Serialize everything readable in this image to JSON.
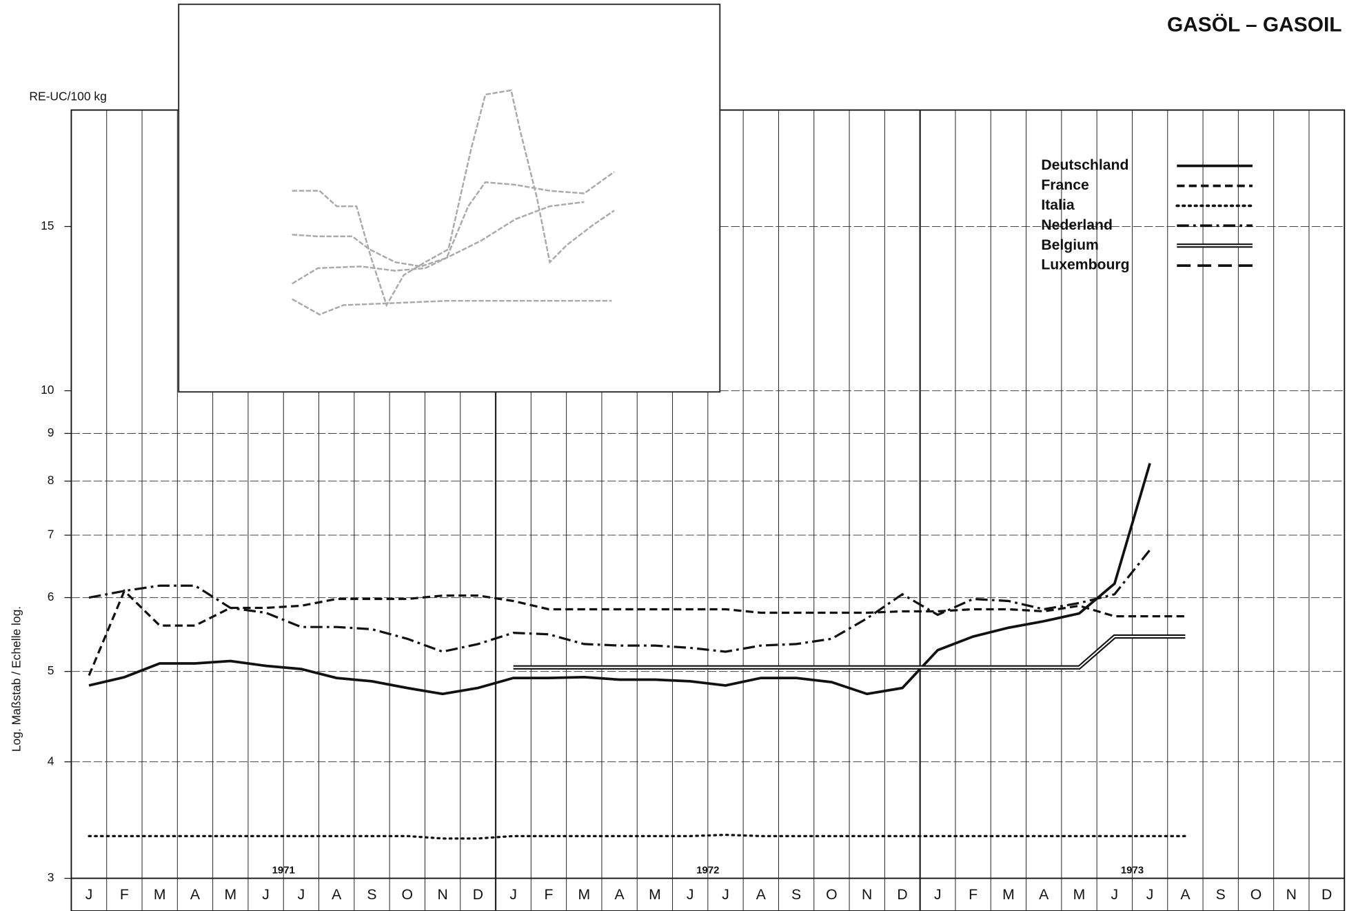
{
  "chart_data": {
    "type": "line",
    "title": "GASÖL – GASOIL",
    "unit_label": "RE-UC/100 kg",
    "y_axis_label": "Log. Maßstab / Echelle log.",
    "log_scale": true,
    "grid": true,
    "legend_position": "upper right",
    "years": [
      "1971",
      "1972",
      "1973"
    ],
    "categories": [
      "J",
      "F",
      "M",
      "A",
      "M",
      "J",
      "J",
      "A",
      "S",
      "O",
      "N",
      "D",
      "J",
      "F",
      "M",
      "A",
      "M",
      "J",
      "J",
      "A",
      "S",
      "O",
      "N",
      "D",
      "J",
      "F",
      "M",
      "A",
      "M",
      "J",
      "J",
      "A",
      "S",
      "O",
      "N",
      "D"
    ],
    "ylim": [
      3,
      20
    ],
    "yticks": [
      3,
      4,
      5,
      6,
      7,
      8,
      9,
      10,
      15
    ],
    "series": [
      {
        "name": "Deutschland",
        "color": "#111111",
        "style": "solid",
        "values": [
          4.83,
          4.93,
          5.1,
          5.1,
          5.13,
          5.07,
          5.03,
          4.92,
          4.88,
          4.8,
          4.73,
          4.8,
          4.92,
          4.92,
          4.93,
          4.9,
          4.9,
          4.88,
          4.83,
          4.92,
          4.92,
          4.87,
          4.73,
          4.8,
          5.27,
          5.45,
          5.57,
          5.66,
          5.77,
          6.21,
          8.36,
          null,
          null,
          null,
          null,
          null
        ]
      },
      {
        "name": "France",
        "color": "#111111",
        "style": "dashed",
        "values": [
          4.95,
          6.1,
          5.6,
          5.6,
          5.85,
          5.85,
          5.88,
          5.98,
          5.98,
          5.98,
          6.03,
          6.03,
          5.95,
          5.83,
          5.83,
          5.83,
          5.83,
          5.83,
          5.83,
          5.78,
          5.78,
          5.78,
          5.78,
          5.8,
          5.8,
          5.83,
          5.83,
          5.8,
          5.88,
          5.73,
          5.73,
          5.73,
          null,
          null,
          null,
          null
        ]
      },
      {
        "name": "Italia",
        "color": "#111111",
        "style": "dotted",
        "values": [
          3.33,
          3.33,
          3.33,
          3.33,
          3.33,
          3.33,
          3.33,
          3.33,
          3.33,
          3.33,
          3.31,
          3.31,
          3.33,
          3.33,
          3.33,
          3.33,
          3.33,
          3.33,
          3.34,
          3.33,
          3.33,
          3.33,
          3.33,
          3.33,
          3.33,
          3.33,
          3.33,
          3.33,
          3.33,
          3.33,
          3.33,
          3.33,
          null,
          null,
          null,
          null
        ]
      },
      {
        "name": "Nederland",
        "color": "#111111",
        "style": "dashdot",
        "values": [
          6.0,
          6.1,
          6.18,
          6.18,
          5.85,
          5.78,
          5.58,
          5.58,
          5.55,
          5.42,
          5.25,
          5.35,
          5.5,
          5.48,
          5.35,
          5.33,
          5.33,
          5.3,
          5.25,
          5.33,
          5.35,
          5.42,
          5.7,
          6.05,
          5.75,
          5.98,
          5.95,
          5.83,
          5.92,
          6.05,
          6.75,
          null,
          null,
          null,
          null,
          null
        ]
      },
      {
        "name": "Belgium",
        "color": "#111111",
        "style": "double",
        "values": [
          null,
          null,
          null,
          null,
          null,
          null,
          null,
          null,
          null,
          null,
          null,
          null,
          5.05,
          5.05,
          5.05,
          5.05,
          5.05,
          5.05,
          5.05,
          5.05,
          5.05,
          5.05,
          5.05,
          5.05,
          5.05,
          5.05,
          5.05,
          5.05,
          5.05,
          5.45,
          5.45,
          5.45,
          null,
          null,
          null,
          null
        ]
      },
      {
        "name": "Luxembourg",
        "color": "#111111",
        "style": "longdash",
        "values": [
          null,
          null,
          null,
          null,
          null,
          null,
          null,
          null,
          null,
          null,
          null,
          null,
          null,
          null,
          null,
          null,
          null,
          null,
          null,
          null,
          null,
          null,
          null,
          null,
          null,
          null,
          null,
          null,
          null,
          null,
          null,
          null,
          null,
          null,
          null,
          null
        ]
      }
    ]
  }
}
